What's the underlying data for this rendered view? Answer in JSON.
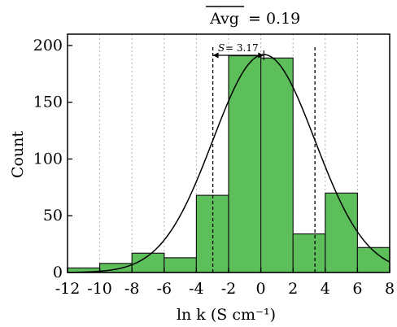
{
  "chart_data": {
    "type": "bar",
    "title": "",
    "xlabel": "ln k (S cm⁻¹)",
    "ylabel": "Count",
    "xlim": [
      -12,
      8
    ],
    "ylim": [
      0,
      210
    ],
    "xticks": [
      -12,
      -10,
      -8,
      -6,
      -4,
      -2,
      0,
      2,
      4,
      6,
      8
    ],
    "xtick_labels": [
      "-12",
      "-10",
      "-8",
      "-6",
      "-4",
      "-2",
      "0",
      "2",
      "4",
      "6",
      "8"
    ],
    "yticks": [
      0,
      50,
      100,
      150,
      200
    ],
    "ytick_labels": [
      "0",
      "50",
      "100",
      "150",
      "200"
    ],
    "grid": "vertical dotted",
    "bins": [
      {
        "x0": -12,
        "x1": -10,
        "count": 4
      },
      {
        "x0": -10,
        "x1": -8,
        "count": 8
      },
      {
        "x0": -8,
        "x1": -6,
        "count": 17
      },
      {
        "x0": -6,
        "x1": -4,
        "count": 13
      },
      {
        "x0": -4,
        "x1": -2,
        "count": 68
      },
      {
        "x0": -2,
        "x1": 0,
        "count": 191
      },
      {
        "x0": 0,
        "x1": 2,
        "count": 189
      },
      {
        "x0": 2,
        "x1": 4,
        "count": 34
      },
      {
        "x0": 4,
        "x1": 6,
        "count": 70
      },
      {
        "x0": 6,
        "x1": 8,
        "count": 22
      }
    ],
    "fit": {
      "type": "gaussian",
      "mean": 0.19,
      "sd": 3.17,
      "peak": 192
    },
    "annotations": {
      "avg_label": "Avg",
      "avg_value": "= 0.19",
      "sd_label": "S",
      "sd_value": "= 3.17"
    },
    "colors": {
      "bar_fill": "#5cbf5a",
      "bar_stroke": "#1a1a1a",
      "curve": "#000000"
    }
  }
}
